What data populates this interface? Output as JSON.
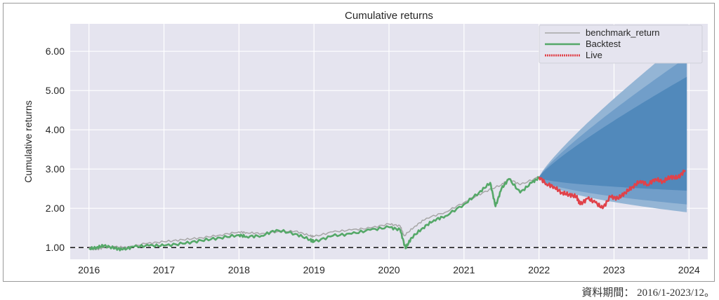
{
  "chart_data": {
    "type": "line",
    "title": "Cumulative returns",
    "ylabel": "Cumulative returns",
    "xlabel": "",
    "xlim": [
      2015.75,
      2024.25
    ],
    "ylim": [
      0.7,
      6.7
    ],
    "x_ticks": [
      "2016",
      "2017",
      "2018",
      "2019",
      "2020",
      "2021",
      "2022",
      "2023",
      "2024"
    ],
    "y_ticks": [
      "1.00",
      "2.00",
      "3.00",
      "4.00",
      "5.00",
      "6.00"
    ],
    "grid": true,
    "legend_position": "top-right",
    "baseline": 1.0,
    "colors": {
      "benchmark": "#a6a6a6",
      "backtest": "#55a868",
      "live": "#e0424a",
      "cone_outer": "#8fb2d3",
      "cone_mid": "#6f9dc8",
      "cone_inner": "#4f88bb",
      "plot_bg": "#e5e4ef",
      "grid": "#ffffff"
    },
    "series": [
      {
        "name": "benchmark_return",
        "x": [
          2016.0,
          2016.1,
          2016.2,
          2016.35,
          2016.5,
          2016.75,
          2017.0,
          2017.25,
          2017.5,
          2017.75,
          2018.0,
          2018.1,
          2018.3,
          2018.5,
          2018.75,
          2018.95,
          2019.0,
          2019.25,
          2019.5,
          2019.75,
          2020.0,
          2020.15,
          2020.2,
          2020.35,
          2020.5,
          2020.75,
          2021.0,
          2021.25,
          2021.5,
          2021.6,
          2021.75,
          2022.0
        ],
        "y": [
          0.98,
          0.95,
          1.0,
          1.02,
          1.0,
          1.1,
          1.15,
          1.2,
          1.25,
          1.32,
          1.4,
          1.38,
          1.36,
          1.4,
          1.42,
          1.3,
          1.28,
          1.4,
          1.45,
          1.5,
          1.6,
          1.55,
          1.3,
          1.55,
          1.75,
          1.9,
          2.15,
          2.4,
          2.6,
          2.75,
          2.6,
          2.8
        ]
      },
      {
        "name": "Backtest",
        "x": [
          2016.0,
          2016.1,
          2016.2,
          2016.35,
          2016.45,
          2016.6,
          2016.8,
          2017.0,
          2017.25,
          2017.5,
          2017.75,
          2018.0,
          2018.1,
          2018.3,
          2018.5,
          2018.75,
          2018.95,
          2019.0,
          2019.25,
          2019.5,
          2019.75,
          2020.0,
          2020.15,
          2020.22,
          2020.3,
          2020.45,
          2020.6,
          2020.75,
          2021.0,
          2021.2,
          2021.35,
          2021.42,
          2021.5,
          2021.6,
          2021.75,
          2021.9,
          2022.0
        ],
        "y": [
          0.97,
          1.0,
          1.05,
          0.98,
          0.95,
          1.02,
          1.05,
          1.05,
          1.1,
          1.18,
          1.25,
          1.32,
          1.28,
          1.3,
          1.45,
          1.35,
          1.2,
          1.15,
          1.3,
          1.35,
          1.45,
          1.52,
          1.45,
          0.98,
          1.25,
          1.5,
          1.7,
          1.8,
          2.1,
          2.4,
          2.65,
          2.05,
          2.5,
          2.75,
          2.4,
          2.65,
          2.78
        ]
      },
      {
        "name": "Live",
        "x": [
          2022.0,
          2022.1,
          2022.2,
          2022.3,
          2022.4,
          2022.5,
          2022.55,
          2022.65,
          2022.75,
          2022.85,
          2022.95,
          2023.05,
          2023.15,
          2023.25,
          2023.35,
          2023.45,
          2023.55,
          2023.65,
          2023.75,
          2023.85,
          2023.95
        ],
        "y": [
          2.8,
          2.62,
          2.55,
          2.4,
          2.35,
          2.3,
          2.1,
          2.25,
          2.15,
          2.0,
          2.3,
          2.25,
          2.4,
          2.55,
          2.7,
          2.6,
          2.75,
          2.68,
          2.8,
          2.78,
          2.97
        ]
      }
    ],
    "cone": {
      "x_start": 2022.0,
      "x_end": 2023.97,
      "start_value": 2.8,
      "bands": [
        {
          "lower": 1.9,
          "upper": 6.35
        },
        {
          "lower": 2.1,
          "upper": 5.85
        },
        {
          "lower": 2.45,
          "upper": 5.35
        }
      ],
      "median_end": 3.0
    }
  },
  "footer": {
    "source_text": "資料期間： 2016/1-2023/12。"
  }
}
